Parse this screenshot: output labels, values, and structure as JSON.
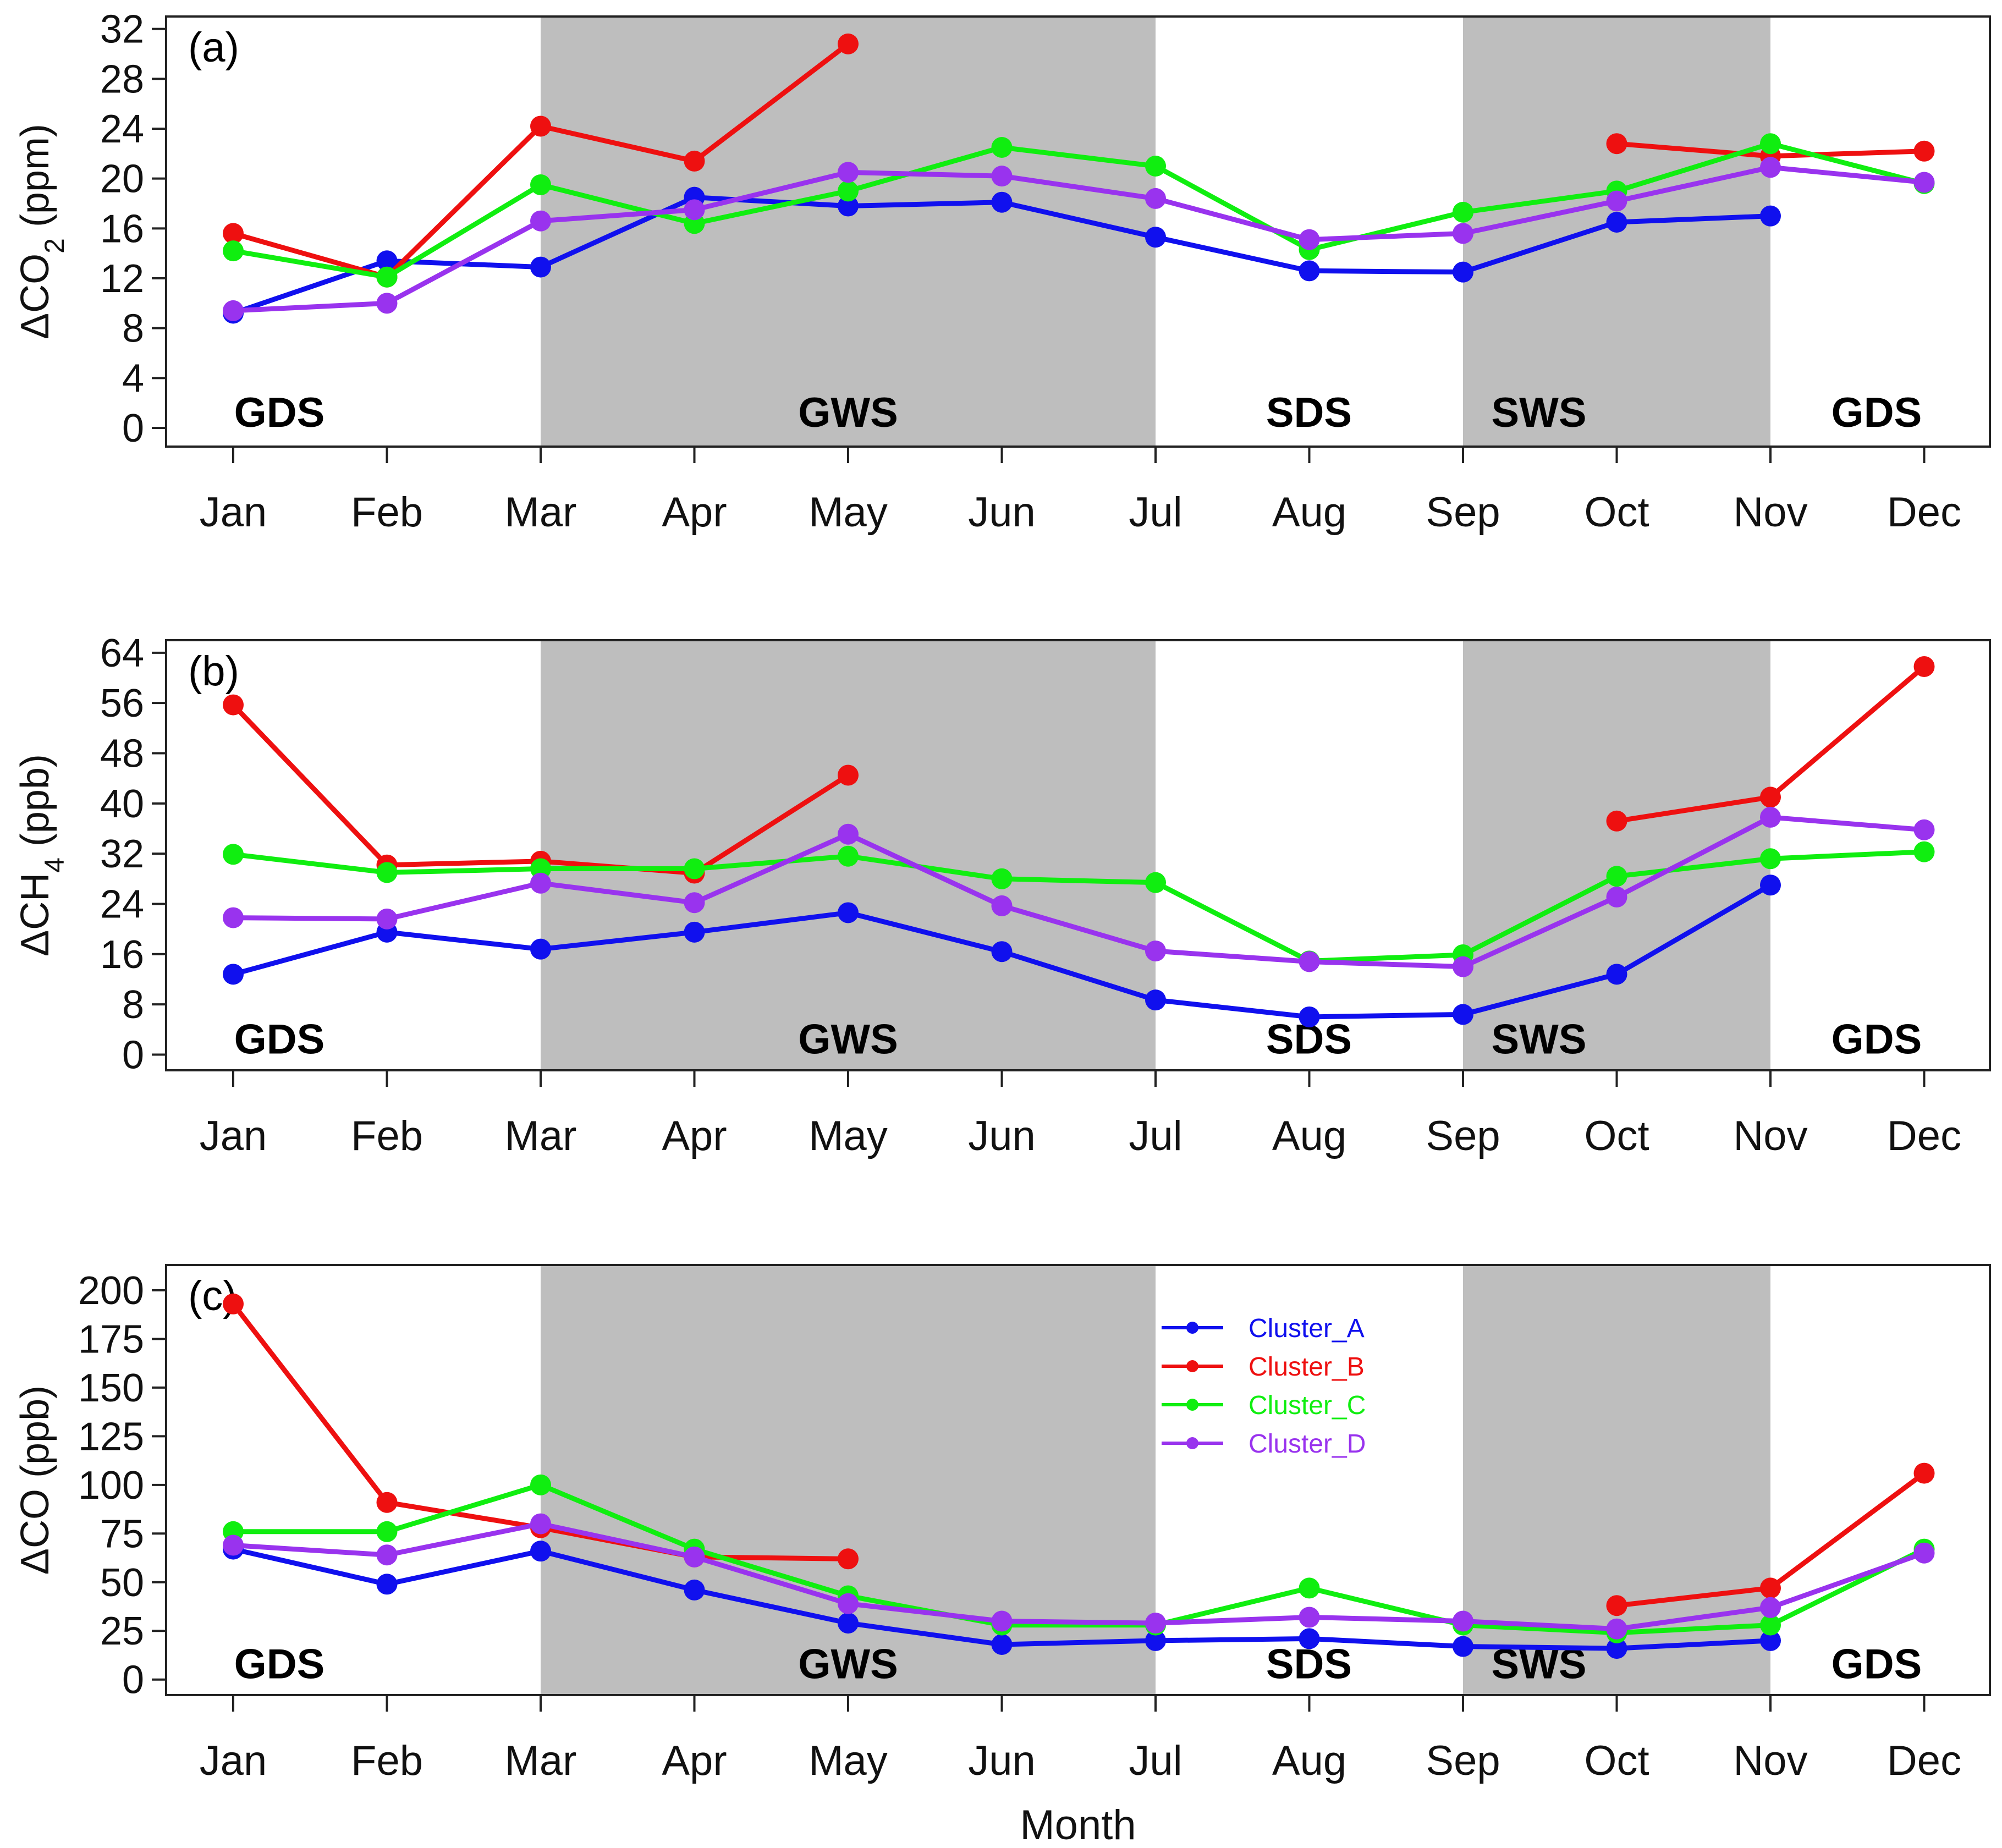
{
  "chart_data": {
    "type": "line",
    "categories": [
      "Jan",
      "Feb",
      "Mar",
      "Apr",
      "May",
      "Jun",
      "Jul",
      "Aug",
      "Sep",
      "Oct",
      "Nov",
      "Dec"
    ],
    "xlabel": "Month",
    "legend": {
      "placement": "center",
      "entries": [
        "Cluster_A",
        "Cluster_B",
        "Cluster_C",
        "Cluster_D"
      ]
    },
    "colors": {
      "Cluster_A": "#1010ee",
      "Cluster_B": "#ee1010",
      "Cluster_C": "#10ee10",
      "Cluster_D": "#9933ee",
      "shade": "#bebebe"
    },
    "seasons": [
      {
        "name": "GDS",
        "from": "Jan",
        "to": "Mar",
        "shaded": false
      },
      {
        "name": "GWS",
        "from": "Mar",
        "to": "Jul",
        "shaded": true
      },
      {
        "name": "SDS",
        "from": "Jul",
        "to": "Sep",
        "shaded": false
      },
      {
        "name": "SWS",
        "from": "Sep",
        "to": "Nov",
        "shaded": true
      },
      {
        "name": "GDS",
        "from": "Nov",
        "to": "Dec",
        "shaded": false
      }
    ],
    "panels": [
      {
        "id": "a",
        "label": "(a)",
        "ylabel_prefix": "ΔCO",
        "ylabel_sub": "2",
        "ylabel_suffix": " (ppm)",
        "ylim": [
          -1.5,
          33
        ],
        "yticks": [
          0,
          4,
          8,
          12,
          16,
          20,
          24,
          28,
          32
        ],
        "series": [
          {
            "name": "Cluster_A",
            "values": [
              9.2,
              13.4,
              12.9,
              18.5,
              17.8,
              18.1,
              15.3,
              12.6,
              12.5,
              16.5,
              17.0,
              null
            ]
          },
          {
            "name": "Cluster_B",
            "values": [
              15.6,
              12.1,
              24.2,
              21.4,
              30.8,
              null,
              null,
              null,
              null,
              22.8,
              21.8,
              22.2
            ]
          },
          {
            "name": "Cluster_C",
            "values": [
              14.2,
              12.1,
              19.5,
              16.4,
              19.0,
              22.5,
              21.0,
              14.3,
              17.3,
              19.0,
              22.8,
              19.6
            ]
          },
          {
            "name": "Cluster_D",
            "values": [
              9.4,
              10.0,
              16.6,
              17.5,
              20.5,
              20.2,
              18.4,
              15.1,
              15.6,
              18.2,
              20.9,
              19.7
            ]
          }
        ]
      },
      {
        "id": "b",
        "label": "(b)",
        "ylabel_prefix": "ΔCH",
        "ylabel_sub": "4",
        "ylabel_suffix": " (ppb)",
        "ylim": [
          -2.5,
          66
        ],
        "yticks": [
          0,
          8,
          16,
          24,
          32,
          40,
          48,
          56,
          64
        ],
        "series": [
          {
            "name": "Cluster_A",
            "values": [
              12.8,
              19.5,
              16.8,
              19.5,
              22.6,
              16.4,
              8.7,
              6.0,
              6.4,
              12.8,
              27.0,
              null
            ]
          },
          {
            "name": "Cluster_B",
            "values": [
              55.7,
              30.2,
              30.8,
              28.9,
              44.5,
              null,
              null,
              null,
              null,
              37.2,
              41.0,
              61.8
            ]
          },
          {
            "name": "Cluster_C",
            "values": [
              31.9,
              29.0,
              29.6,
              29.6,
              31.6,
              28.0,
              27.4,
              14.9,
              15.9,
              28.4,
              31.2,
              32.3
            ]
          },
          {
            "name": "Cluster_D",
            "values": [
              21.8,
              21.6,
              27.3,
              24.2,
              35.1,
              23.7,
              16.5,
              14.8,
              14.0,
              25.1,
              37.8,
              35.8
            ]
          }
        ]
      },
      {
        "id": "c",
        "label": "(c)",
        "ylabel_prefix": "ΔCO",
        "ylabel_sub": "",
        "ylabel_suffix": " (ppb)",
        "ylim": [
          -8,
          213
        ],
        "yticks": [
          0,
          25,
          50,
          75,
          100,
          125,
          150,
          175,
          200
        ],
        "series": [
          {
            "name": "Cluster_A",
            "values": [
              67,
              49,
              66,
              46,
              29,
              18,
              20,
              21,
              17,
              16,
              20,
              null
            ]
          },
          {
            "name": "Cluster_B",
            "values": [
              193,
              91,
              78,
              63,
              62,
              null,
              null,
              null,
              null,
              38,
              47,
              106
            ]
          },
          {
            "name": "Cluster_C",
            "values": [
              76,
              76,
              100,
              67,
              43,
              28,
              28,
              47,
              28,
              24,
              28,
              67
            ]
          },
          {
            "name": "Cluster_D",
            "values": [
              69,
              64,
              80,
              63,
              39,
              30,
              29,
              32,
              30,
              26,
              37,
              65
            ]
          }
        ]
      }
    ]
  }
}
